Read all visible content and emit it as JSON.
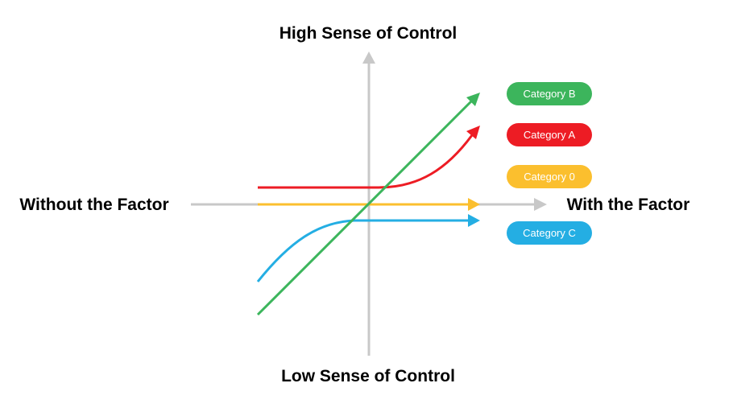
{
  "labels": {
    "top": "High Sense of Control",
    "bottom": "Low Sense of Control",
    "left": "Without the Factor",
    "right": "With the Factor"
  },
  "axis_color": "#c8c8c8",
  "legend": [
    {
      "key": "b",
      "label": "Category B",
      "color": "#3cb55c"
    },
    {
      "key": "a",
      "label": "Category A",
      "color": "#ed1c24"
    },
    {
      "key": "zero",
      "label": "Category 0",
      "color": "#fbbf2e"
    },
    {
      "key": "c",
      "label": "Category C",
      "color": "#24aee3"
    }
  ]
}
